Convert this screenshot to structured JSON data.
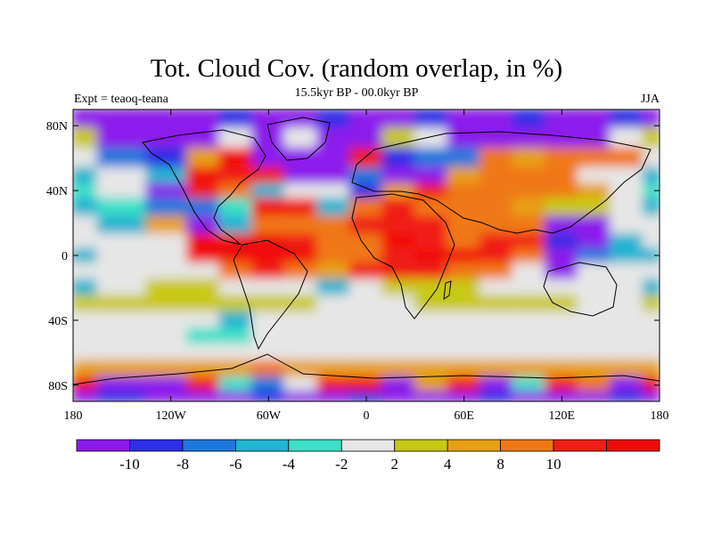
{
  "title": "Tot. Cloud Cov. (random overlap, in %)",
  "subtitle": "15.5kyr BP - 00.0kyr BP",
  "left_label": "Expt = teaoq-teana",
  "right_label": "JJA",
  "axes": {
    "lon_ticks": [
      "180",
      "120W",
      "60W",
      "0",
      "60E",
      "120E",
      "180"
    ],
    "lat_ticks": [
      "80N",
      "40N",
      "0",
      "40S",
      "80S"
    ]
  },
  "colorbar": {
    "colors": [
      "#8c1aeb",
      "#2d2ee6",
      "#1e78dc",
      "#20b4d0",
      "#3ee0c8",
      "#e6e6e6",
      "#c8c814",
      "#e6a014",
      "#f07814",
      "#f01e14",
      "#f00a0a"
    ],
    "labels": [
      "-10",
      "-8",
      "-6",
      "-4",
      "-2",
      "2",
      "4",
      "8",
      "10"
    ]
  },
  "chart_data": {
    "type": "heatmap",
    "title": "Tot. Cloud Cov. (random overlap, in %)",
    "subtitle": "15.5kyr BP - 00.0kyr BP",
    "variable": "total cloud cover difference (%)",
    "season": "JJA",
    "x_range": [
      -180,
      180
    ],
    "y_range": [
      -90,
      90
    ],
    "levels": [
      -10,
      -8,
      -6,
      -4,
      -2,
      2,
      4,
      8,
      10
    ],
    "rows_lat": [
      85,
      72,
      60,
      48,
      40,
      30,
      18,
      8,
      0,
      -10,
      -20,
      -30,
      -40,
      -50,
      -60,
      -70,
      -80,
      -88
    ],
    "cols_lon": [
      -180,
      -150,
      -120,
      -100,
      -80,
      -60,
      -40,
      -20,
      0,
      20,
      40,
      60,
      80,
      100,
      120,
      140,
      160,
      180
    ],
    "grid": [
      [
        0,
        0,
        0,
        0,
        1,
        0,
        0,
        1,
        0,
        0,
        1,
        0,
        0,
        1,
        0,
        0,
        1,
        0
      ],
      [
        6,
        0,
        0,
        0,
        5,
        0,
        5,
        0,
        0,
        6,
        5,
        0,
        0,
        0,
        0,
        0,
        5,
        6
      ],
      [
        5,
        2,
        1,
        7,
        10,
        0,
        0,
        0,
        9,
        1,
        2,
        2,
        8,
        7,
        8,
        8,
        8,
        5
      ],
      [
        3,
        5,
        3,
        10,
        9,
        9,
        0,
        0,
        2,
        0,
        0,
        7,
        8,
        8,
        8,
        5,
        5,
        3
      ],
      [
        4,
        5,
        0,
        9,
        8,
        3,
        5,
        5,
        1,
        7,
        9,
        8,
        8,
        8,
        8,
        7,
        5,
        4
      ],
      [
        3,
        4,
        2,
        2,
        4,
        10,
        9,
        3,
        8,
        9,
        8,
        8,
        8,
        7,
        6,
        6,
        5,
        3
      ],
      [
        5,
        3,
        7,
        0,
        3,
        8,
        8,
        8,
        9,
        9,
        9,
        8,
        8,
        8,
        0,
        0,
        5,
        5
      ],
      [
        5,
        5,
        5,
        10,
        10,
        10,
        9,
        8,
        8,
        10,
        9,
        8,
        9,
        9,
        1,
        0,
        3,
        5
      ],
      [
        3,
        5,
        5,
        10,
        10,
        10,
        10,
        8,
        8,
        9,
        10,
        10,
        9,
        8,
        0,
        2,
        3,
        3
      ],
      [
        5,
        5,
        5,
        5,
        8,
        9,
        8,
        7,
        9,
        9,
        9,
        8,
        8,
        5,
        0,
        5,
        5,
        5
      ],
      [
        3,
        5,
        6,
        6,
        5,
        5,
        5,
        3,
        5,
        6,
        6,
        6,
        5,
        5,
        5,
        5,
        5,
        3
      ],
      [
        6,
        6,
        6,
        6,
        6,
        6,
        6,
        5,
        5,
        5,
        6,
        6,
        6,
        6,
        6,
        5,
        5,
        6
      ],
      [
        5,
        5,
        5,
        5,
        3,
        5,
        5,
        5,
        5,
        5,
        5,
        5,
        5,
        5,
        5,
        5,
        5,
        5
      ],
      [
        5,
        5,
        5,
        4,
        4,
        5,
        5,
        5,
        5,
        5,
        5,
        5,
        5,
        5,
        5,
        5,
        5,
        5
      ],
      [
        5,
        5,
        5,
        5,
        5,
        5,
        5,
        5,
        5,
        5,
        5,
        5,
        5,
        5,
        5,
        5,
        5,
        5
      ],
      [
        7,
        7,
        7,
        7,
        7,
        8,
        7,
        7,
        7,
        7,
        7,
        7,
        7,
        7,
        7,
        7,
        7,
        7
      ],
      [
        10,
        0,
        0,
        9,
        4,
        2,
        5,
        9,
        10,
        0,
        7,
        9,
        0,
        4,
        9,
        8,
        0,
        10
      ],
      [
        0,
        1,
        0,
        0,
        0,
        1,
        0,
        0,
        1,
        0,
        0,
        0,
        1,
        0,
        0,
        0,
        1,
        0
      ]
    ]
  }
}
